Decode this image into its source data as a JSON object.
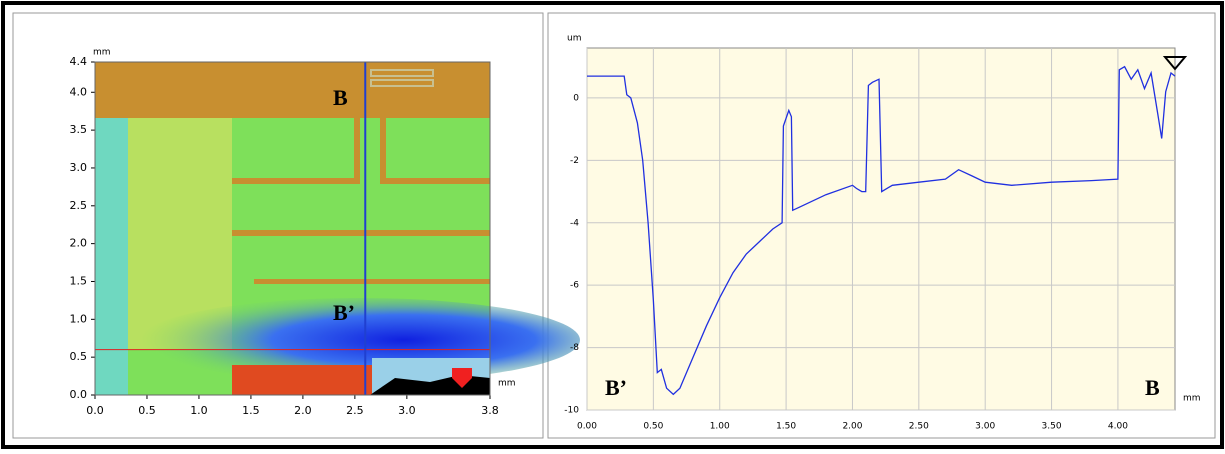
{
  "chart_data": [
    {
      "type": "image",
      "xlabel": "mm",
      "ylabel": "mm",
      "xlim": [
        0,
        3.8
      ],
      "ylim": [
        0,
        4.4
      ],
      "xticks": [
        {
          "value": 0,
          "label": "0.0"
        },
        {
          "value": 0.5,
          "label": "0.5"
        },
        {
          "value": 1,
          "label": "1.0"
        },
        {
          "value": 1.5,
          "label": "1.5"
        },
        {
          "value": 2,
          "label": "2.0"
        },
        {
          "value": 2.5,
          "label": "2.5"
        },
        {
          "value": 3,
          "label": "3.0"
        },
        3.8
      ],
      "yticks": [
        {
          "value": 0,
          "label": "0.0"
        },
        {
          "value": 0.5,
          "label": "0.5"
        },
        {
          "value": 1,
          "label": "1.0"
        },
        {
          "value": 1.5,
          "label": "1.5"
        },
        {
          "value": 2,
          "label": "2.0"
        },
        {
          "value": 2.5,
          "label": "2.5"
        },
        {
          "value": 3,
          "label": "3.0"
        },
        {
          "value": 3.5,
          "label": "3.5"
        },
        {
          "value": 4,
          "label": "4.0"
        },
        4.4
      ],
      "cursor_x": 2.6,
      "cursor_x_color": "#2040d0",
      "cursor_y": 0.6,
      "cursor_y_color": "#e02020",
      "annotations": [
        "B",
        "B’"
      ]
    },
    {
      "type": "line",
      "xlabel": "mm",
      "ylabel": "um",
      "color": "#2030e0",
      "grid": true,
      "xlim": [
        0,
        4.43
      ],
      "ylim": [
        -10,
        1.6
      ],
      "xticks": [
        {
          "value": 0,
          "label": "0.00"
        },
        {
          "value": 0.5,
          "label": "0.50"
        },
        {
          "value": 1,
          "label": "1.00"
        },
        {
          "value": 1.5,
          "label": "1.50"
        },
        {
          "value": 2,
          "label": "2.00"
        },
        {
          "value": 2.5,
          "label": "2.50"
        },
        {
          "value": 3,
          "label": "3.00"
        },
        {
          "value": 3.5,
          "label": "3.50"
        },
        {
          "value": 4,
          "label": "4.00"
        }
      ],
      "yticks": [
        0,
        -2,
        -4,
        -6,
        -8,
        -10
      ],
      "x": [
        0,
        0.28,
        0.3,
        0.33,
        0.38,
        0.42,
        0.46,
        0.5,
        0.53,
        0.56,
        0.6,
        0.65,
        0.7,
        0.8,
        0.9,
        1.0,
        1.1,
        1.2,
        1.3,
        1.4,
        1.47,
        1.48,
        1.52,
        1.54,
        1.55,
        1.6,
        1.8,
        2.0,
        2.03,
        2.07,
        2.1,
        2.12,
        2.15,
        2.2,
        2.22,
        2.3,
        2.5,
        2.7,
        2.8,
        2.9,
        3.0,
        3.2,
        3.5,
        3.8,
        4.0,
        4.01,
        4.05,
        4.1,
        4.15,
        4.2,
        4.25,
        4.3,
        4.33,
        4.36,
        4.4,
        4.43
      ],
      "values": [
        0.7,
        0.7,
        0.1,
        0,
        -0.8,
        -2,
        -4,
        -6.5,
        -8.8,
        -8.7,
        -9.3,
        -9.5,
        -9.3,
        -8.3,
        -7.3,
        -6.4,
        -5.6,
        -5.0,
        -4.6,
        -4.2,
        -4.0,
        -0.9,
        -0.4,
        -0.6,
        -3.6,
        -3.5,
        -3.1,
        -2.8,
        -2.9,
        -3.0,
        -3.0,
        0.4,
        0.5,
        0.6,
        -3.0,
        -2.8,
        -2.7,
        -2.6,
        -2.3,
        -2.5,
        -2.7,
        -2.8,
        -2.7,
        -2.65,
        -2.6,
        0.9,
        1.0,
        0.6,
        0.9,
        0.3,
        0.8,
        -0.5,
        -1.3,
        0.2,
        0.8,
        0.7
      ],
      "annotations": [
        "B’",
        "B"
      ]
    }
  ]
}
